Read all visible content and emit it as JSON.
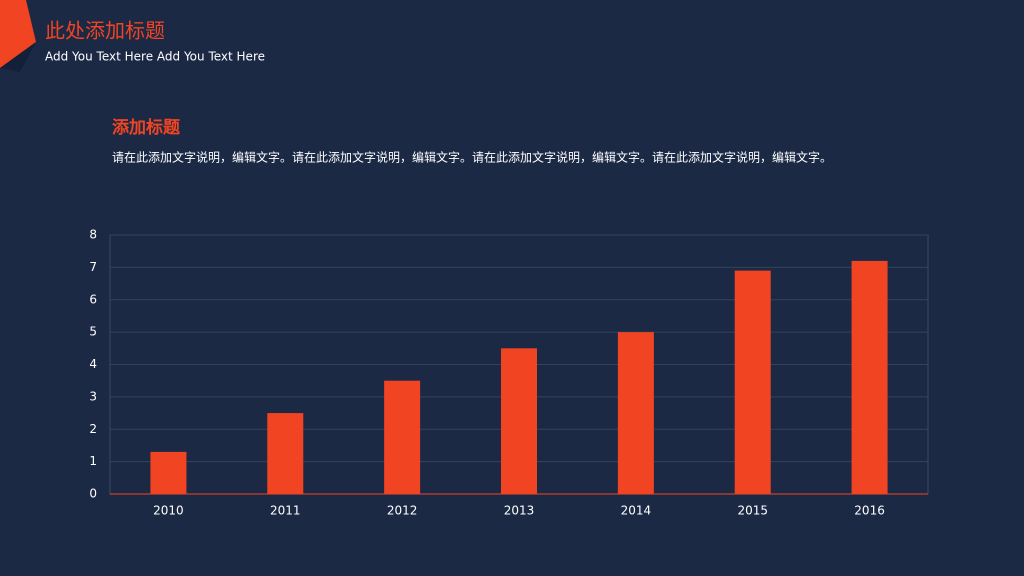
{
  "header": {
    "title": "此处添加标题",
    "subtitle": "Add You Text Here Add You Text Here"
  },
  "section": {
    "title": "添加标题",
    "text": "请在此添加文字说明，编辑文字。请在此添加文字说明，编辑文字。请在此添加文字说明，编辑文字。请在此添加文字说明，编辑文字。"
  },
  "chart_data": {
    "type": "bar",
    "categories": [
      "2010",
      "2011",
      "2012",
      "2013",
      "2014",
      "2015",
      "2016"
    ],
    "values": [
      1.3,
      2.5,
      3.5,
      4.5,
      5,
      6.9,
      7.2
    ],
    "color": "#f04422",
    "ylim": [
      0,
      8
    ],
    "yticks": [
      0,
      1,
      2,
      3,
      4,
      5,
      6,
      7,
      8
    ],
    "grid": true
  }
}
